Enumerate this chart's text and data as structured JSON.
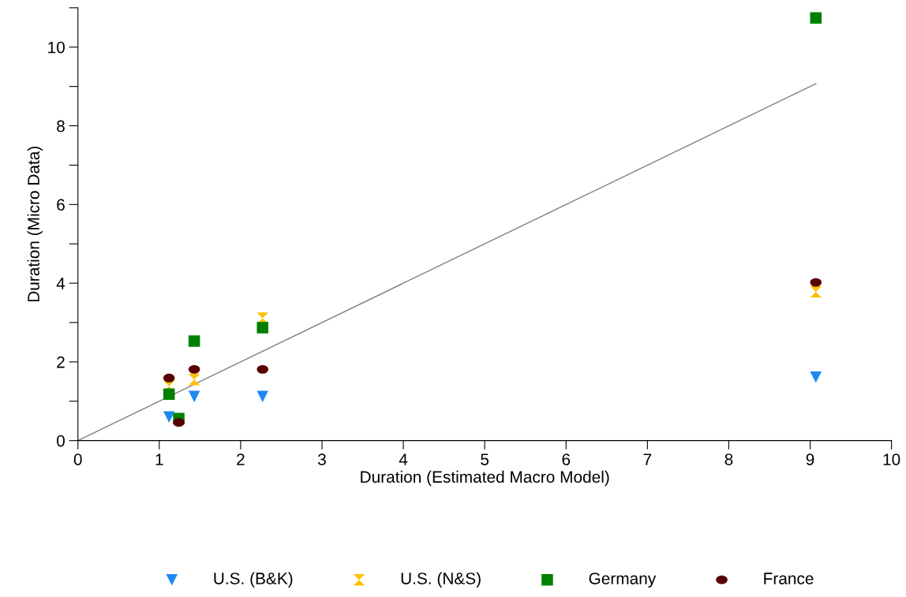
{
  "chart_data": {
    "type": "scatter",
    "xlabel": "Duration (Estimated Macro Model)",
    "ylabel": "Duration (Micro Data)",
    "xlim": [
      0,
      10
    ],
    "xticks": [
      0,
      1,
      2,
      3,
      4,
      5,
      6,
      7,
      8,
      9,
      10
    ],
    "ylim": [
      0,
      11
    ],
    "yticks": [
      0,
      {
        "value": 1,
        "label": null
      },
      2,
      {
        "value": 3,
        "label": null
      },
      4,
      {
        "value": 5,
        "label": null
      },
      6,
      {
        "value": 7,
        "label": null
      },
      8,
      {
        "value": 9,
        "label": null
      },
      10,
      {
        "value": 11,
        "label": null
      }
    ],
    "grid": false,
    "legend": "bottom",
    "series": [
      {
        "name": "U.S. (B&K)",
        "color": "#1e88f0",
        "marker": "triangle",
        "x": [
          1.12,
          1.43,
          2.27,
          9.07
        ],
        "values": [
          0.6,
          1.12,
          1.12,
          1.61
        ]
      },
      {
        "name": "U.S. (N&S)",
        "color": "#ffc000",
        "marker": "cross",
        "x": [
          1.12,
          1.43,
          2.27,
          9.07
        ],
        "values": [
          1.38,
          1.55,
          3.11,
          3.78
        ]
      },
      {
        "name": "Germany",
        "color": "#008000",
        "marker": "square",
        "x": [
          1.12,
          1.24,
          1.43,
          2.27,
          9.07
        ],
        "values": [
          1.18,
          0.56,
          2.53,
          2.87,
          10.74
        ]
      },
      {
        "name": "France",
        "color": "#580000",
        "marker": "circle",
        "x": [
          1.12,
          1.24,
          1.43,
          2.27,
          9.07
        ],
        "values": [
          1.59,
          0.46,
          1.81,
          1.81,
          4.02
        ]
      },
      {
        "type": "line",
        "color": "#808080",
        "marker": "none",
        "x": [
          0,
          9.07
        ],
        "values": [
          0,
          9.07
        ]
      }
    ]
  }
}
